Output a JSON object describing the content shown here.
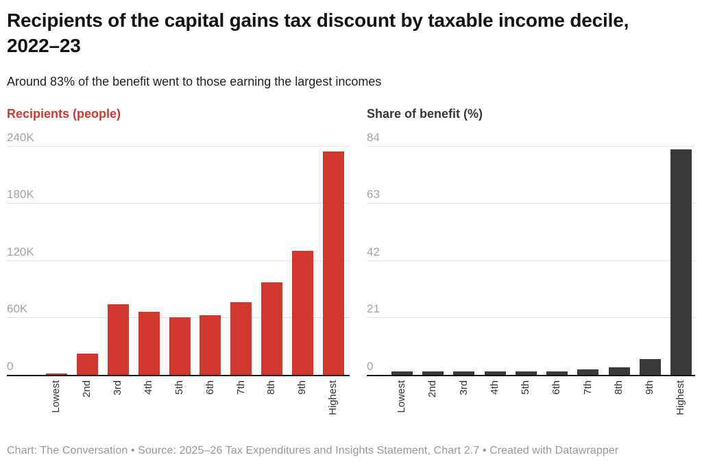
{
  "title": "Recipients of the capital gains tax discount by taxable income decile, 2022–23",
  "subtitle": "Around 83% of the benefit went to those earning the largest incomes",
  "footer": "Chart: The Conversation • Source: 2025–26 Tax Expenditures and Insights Statement, Chart 2.7 • Created with Datawrapper",
  "colors": {
    "left_accent": "#d2372d",
    "right_accent": "#3a3a3a",
    "tick_text": "#a3a3a3",
    "gridline": "#e2e2e2",
    "axis": "#111111"
  },
  "chart_data": [
    {
      "type": "bar",
      "title": "Recipients (people)",
      "categories": [
        "Lowest",
        "2nd",
        "3rd",
        "4th",
        "5th",
        "6th",
        "7th",
        "8th",
        "9th",
        "Highest"
      ],
      "values": [
        1400,
        22000,
        74000,
        66000,
        60000,
        62000,
        76000,
        97000,
        130000,
        234000
      ],
      "xlabel": "",
      "ylabel": "Recipients (people)",
      "ylim": [
        0,
        240000
      ],
      "yticks": [
        "240K",
        "180K",
        "120K",
        "60K",
        "0"
      ],
      "ytick_values": [
        240000,
        180000,
        120000,
        60000,
        0
      ],
      "bar_color": "#d2372d",
      "grid": true,
      "legend": "none"
    },
    {
      "type": "bar",
      "title": "Share of benefit (%)",
      "categories": [
        "Lowest",
        "2nd",
        "3rd",
        "4th",
        "5th",
        "6th",
        "7th",
        "8th",
        "9th",
        "Highest"
      ],
      "values": [
        1.1,
        1.2,
        1.2,
        1.2,
        1.2,
        1.1,
        1.8,
        2.7,
        5.8,
        82.6
      ],
      "xlabel": "",
      "ylabel": "Share of benefit (%)",
      "ylim": [
        0,
        84
      ],
      "yticks": [
        "84",
        "63",
        "42",
        "21",
        "0"
      ],
      "ytick_values": [
        84,
        63,
        42,
        21,
        0
      ],
      "bar_color": "#3a3a3a",
      "grid": true,
      "legend": "none"
    }
  ]
}
